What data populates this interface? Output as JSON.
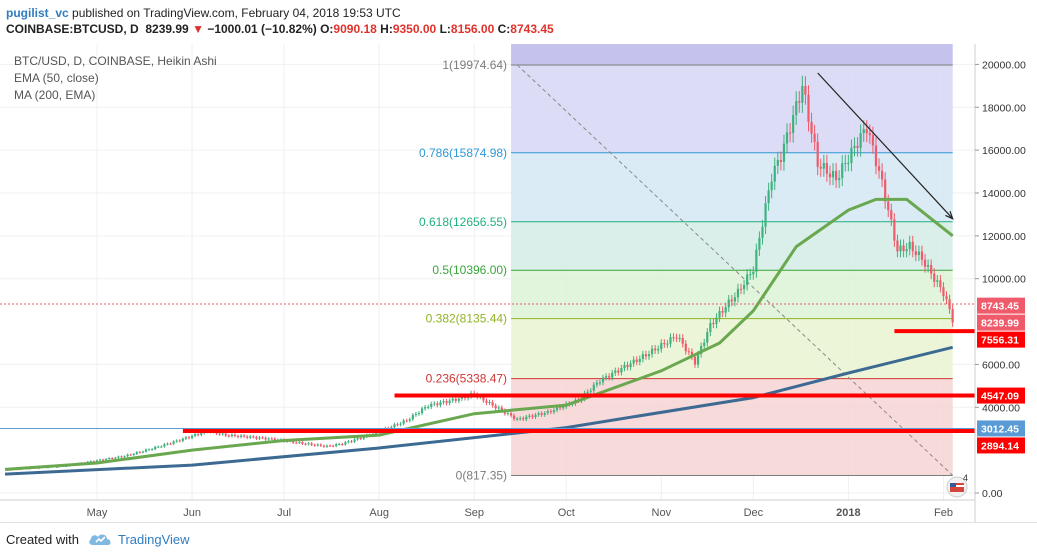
{
  "header": {
    "author": "pugilist_vc",
    "published_text": "published on TradingView.com, February 04, 2018 19:53 UTC",
    "symbol": "COINBASE:BTCUSD, D",
    "last": "8239.99",
    "change": "−1000.01 (−10.82%)",
    "o_label": "O:",
    "o": "9090.18",
    "h_label": "H:",
    "h": "9350.00",
    "l_label": "L:",
    "l": "8156.00",
    "c_label": "C:",
    "c": "8743.45"
  },
  "legend": {
    "main": "BTC/USD, D, COINBASE, Heikin Ashi",
    "ema": "EMA (50, close)",
    "ma": "MA (200, EMA)"
  },
  "footer": {
    "created_with": "Created with",
    "brand": "TradingView"
  },
  "colors": {
    "up": "#3fb27f",
    "down": "#ef5b6a",
    "ema": "#6aa84f",
    "ma": "#3d6a93",
    "support": "#ff0000",
    "fib_top": "#c5c3ee"
  },
  "chart_data": {
    "type": "candlestick",
    "title": "BTC/USD, D, COINBASE, Heikin Ashi",
    "x_ticks": [
      "May",
      "Jun",
      "Jul",
      "Aug",
      "Sep",
      "Oct",
      "Nov",
      "Dec",
      "2018",
      "Feb"
    ],
    "y_ticks": [
      "20000.00",
      "18000.00",
      "16000.00",
      "14000.00",
      "12000.00",
      "10000.00",
      "6000.00",
      "4000.00",
      "0.00"
    ],
    "y_scale": "linear",
    "ylim": [
      -800,
      20500
    ],
    "fib_levels": [
      {
        "label": "1(19974.64)",
        "value": 19974.64,
        "color": "#7c7c7c",
        "fill": "#d6d6f5"
      },
      {
        "label": "0.786(15874.98)",
        "value": 15874.98,
        "color": "#2e9ad6",
        "fill": "#d3e7f3"
      },
      {
        "label": "0.618(12656.55)",
        "value": 12656.55,
        "color": "#21b07d",
        "fill": "#d3ece6"
      },
      {
        "label": "0.5(10396.00)",
        "value": 10396.0,
        "color": "#39a53a",
        "fill": "#dcf2d6"
      },
      {
        "label": "0.382(8135.44)",
        "value": 8135.44,
        "color": "#8fb324",
        "fill": "#eaf3d2"
      },
      {
        "label": "0.236(5338.47)",
        "value": 5338.47,
        "color": "#d03535",
        "fill": "#f6d3d3"
      },
      {
        "label": "0(817.35)",
        "value": 817.35,
        "color": "#7c7c7c",
        "fill": "#f6d3d3"
      }
    ],
    "support_levels": [
      7556.31,
      4547.09,
      2894.14
    ],
    "price_labels": [
      {
        "text": "8743.45",
        "value": 8743.45,
        "color": "#ef5b6a"
      },
      {
        "text": "8239.99",
        "value": 8239.99,
        "color": "#ef5b6a"
      },
      {
        "text": "7556.31",
        "value": 7556.31,
        "color": "#ff0000"
      },
      {
        "text": "4547.09",
        "value": 4547.09,
        "color": "#ff0000"
      },
      {
        "text": "3012.45",
        "value": 3012.45,
        "color": "#5a9bd5"
      },
      {
        "text": "2894.14",
        "value": 2894.14,
        "color": "#ff0000"
      }
    ],
    "current_price": 8743.45,
    "price_path": [
      [
        "2017-04-01",
        1080
      ],
      [
        "2017-04-20",
        1230
      ],
      [
        "2017-05-10",
        1750
      ],
      [
        "2017-05-25",
        2350
      ],
      [
        "2017-06-06",
        2850
      ],
      [
        "2017-06-12",
        2650
      ],
      [
        "2017-06-25",
        2550
      ],
      [
        "2017-07-01",
        2480
      ],
      [
        "2017-07-15",
        2200
      ],
      [
        "2017-07-20",
        2300
      ],
      [
        "2017-08-01",
        2800
      ],
      [
        "2017-08-10",
        3350
      ],
      [
        "2017-08-17",
        4100
      ],
      [
        "2017-08-25",
        4400
      ],
      [
        "2017-09-01",
        4700
      ],
      [
        "2017-09-04",
        4400
      ],
      [
        "2017-09-15",
        3400
      ],
      [
        "2017-09-25",
        3700
      ],
      [
        "2017-10-05",
        4300
      ],
      [
        "2017-10-12",
        5300
      ],
      [
        "2017-10-20",
        6000
      ],
      [
        "2017-11-06",
        7300
      ],
      [
        "2017-11-12",
        6000
      ],
      [
        "2017-11-17",
        7700
      ],
      [
        "2017-11-26",
        9300
      ],
      [
        "2017-12-01",
        10500
      ],
      [
        "2017-12-07",
        15000
      ],
      [
        "2017-12-10",
        16000
      ],
      [
        "2017-12-17",
        19300
      ],
      [
        "2017-12-22",
        15500
      ],
      [
        "2017-12-28",
        14600
      ],
      [
        "2018-01-07",
        16800
      ],
      [
        "2018-01-12",
        14200
      ],
      [
        "2018-01-17",
        11200
      ],
      [
        "2018-01-21",
        11500
      ],
      [
        "2018-01-25",
        11000
      ],
      [
        "2018-02-01",
        9500
      ],
      [
        "2018-02-04",
        8240
      ]
    ],
    "ema_path": [
      [
        "2017-04-01",
        1100
      ],
      [
        "2017-05-01",
        1400
      ],
      [
        "2017-06-01",
        2000
      ],
      [
        "2017-07-01",
        2450
      ],
      [
        "2017-08-01",
        2700
      ],
      [
        "2017-09-01",
        3700
      ],
      [
        "2017-10-01",
        4100
      ],
      [
        "2017-11-01",
        5700
      ],
      [
        "2017-11-20",
        7000
      ],
      [
        "2017-12-01",
        8500
      ],
      [
        "2017-12-15",
        11500
      ],
      [
        "2018-01-01",
        13200
      ],
      [
        "2018-01-10",
        13700
      ],
      [
        "2018-01-20",
        13700
      ],
      [
        "2018-02-04",
        12000
      ]
    ],
    "ma_path": [
      [
        "2017-04-01",
        880
      ],
      [
        "2017-06-01",
        1300
      ],
      [
        "2017-08-01",
        2100
      ],
      [
        "2017-10-01",
        3050
      ],
      [
        "2017-12-01",
        4450
      ],
      [
        "2018-01-01",
        5600
      ],
      [
        "2018-02-04",
        6800
      ]
    ],
    "trend_line": [
      [
        "2017-12-22",
        19600
      ],
      [
        "2018-02-04",
        12800
      ]
    ],
    "fib_diagonal": [
      [
        "2017-09-15",
        19974.64
      ],
      [
        "2018-02-04",
        817.35
      ]
    ]
  }
}
